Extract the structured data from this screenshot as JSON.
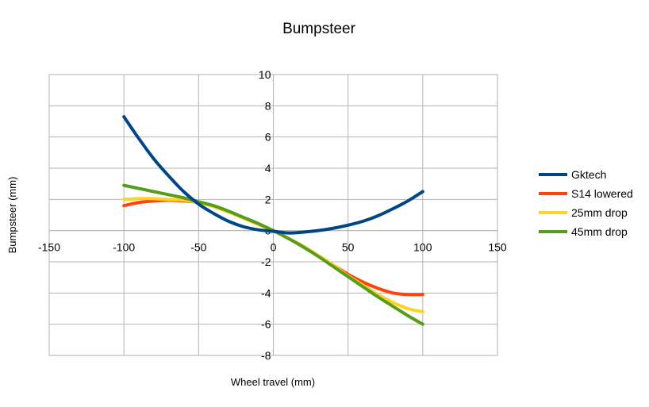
{
  "chart_data": {
    "type": "line",
    "title": "Bumpsteer",
    "xlabel": "Wheel travel (mm)",
    "ylabel": "Bumpsteer (mm)",
    "xlim": [
      -150,
      150
    ],
    "ylim": [
      -8,
      10
    ],
    "x_ticks": [
      -150,
      -100,
      -50,
      0,
      50,
      100,
      150
    ],
    "y_ticks": [
      -8,
      -6,
      -4,
      -2,
      0,
      2,
      4,
      6,
      8,
      10
    ],
    "grid": true,
    "legend_position": "right",
    "series": [
      {
        "name": "Gktech",
        "color": "#004586",
        "x": [
          -100,
          -90,
          -80,
          -70,
          -60,
          -50,
          -40,
          -30,
          -20,
          -10,
          0,
          10,
          20,
          30,
          40,
          50,
          60,
          70,
          80,
          90,
          100
        ],
        "y": [
          7.3,
          5.9,
          4.6,
          3.5,
          2.5,
          1.7,
          1.1,
          0.6,
          0.25,
          0.05,
          -0.05,
          -0.15,
          -0.1,
          0.0,
          0.15,
          0.35,
          0.6,
          0.95,
          1.4,
          1.9,
          2.5
        ]
      },
      {
        "name": "S14 lowered",
        "color": "#ff420e",
        "x": [
          -100,
          -90,
          -80,
          -70,
          -60,
          -50,
          -40,
          -30,
          -20,
          -10,
          0,
          10,
          20,
          30,
          40,
          50,
          60,
          70,
          80,
          90,
          100
        ],
        "y": [
          1.6,
          1.8,
          1.9,
          1.95,
          1.9,
          1.8,
          1.55,
          1.2,
          0.8,
          0.4,
          0.0,
          -0.5,
          -1.0,
          -1.6,
          -2.2,
          -2.8,
          -3.3,
          -3.7,
          -4.0,
          -4.1,
          -4.1
        ]
      },
      {
        "name": "25mm drop",
        "color": "#ffd320",
        "x": [
          -100,
          -90,
          -80,
          -70,
          -60,
          -50,
          -40,
          -30,
          -20,
          -10,
          0,
          10,
          20,
          30,
          40,
          50,
          60,
          70,
          80,
          90,
          100
        ],
        "y": [
          2.0,
          2.05,
          2.05,
          2.0,
          1.95,
          1.8,
          1.55,
          1.2,
          0.8,
          0.4,
          0.0,
          -0.5,
          -1.0,
          -1.6,
          -2.2,
          -2.9,
          -3.5,
          -4.1,
          -4.6,
          -5.0,
          -5.2
        ]
      },
      {
        "name": "45mm drop",
        "color": "#579d1c",
        "x": [
          -100,
          -90,
          -80,
          -70,
          -60,
          -50,
          -40,
          -30,
          -20,
          -10,
          0,
          10,
          20,
          30,
          40,
          50,
          60,
          70,
          80,
          90,
          100
        ],
        "y": [
          2.9,
          2.7,
          2.5,
          2.3,
          2.1,
          1.85,
          1.6,
          1.25,
          0.85,
          0.45,
          0.0,
          -0.5,
          -1.05,
          -1.65,
          -2.3,
          -2.95,
          -3.6,
          -4.25,
          -4.85,
          -5.45,
          -6.0
        ]
      }
    ]
  }
}
